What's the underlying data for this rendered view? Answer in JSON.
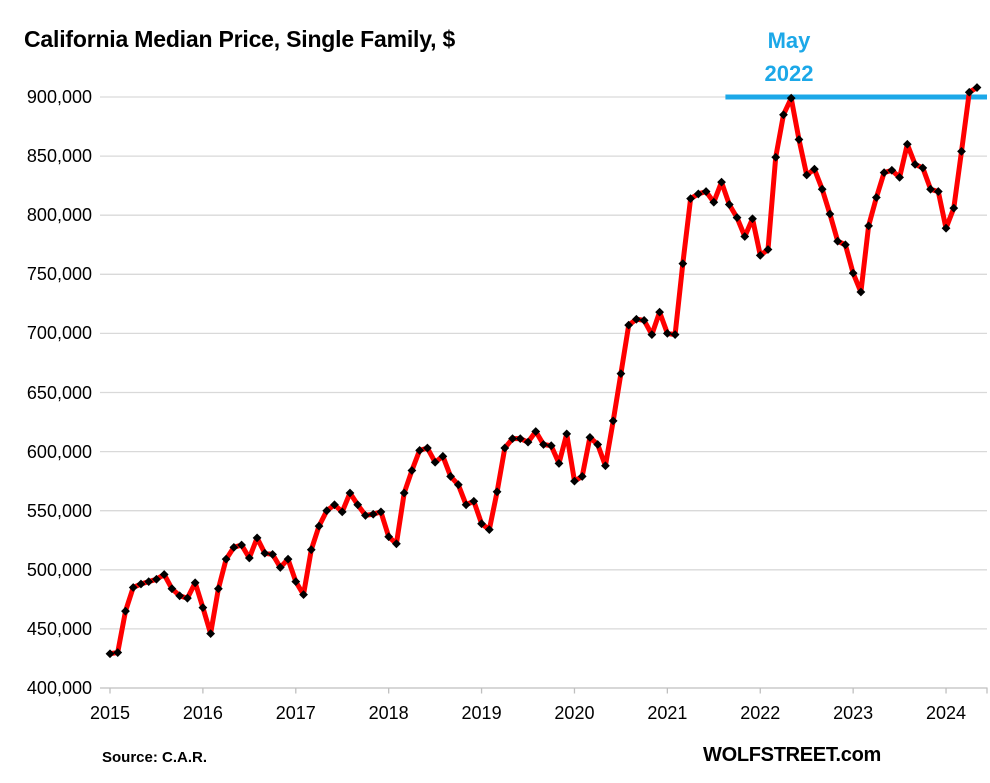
{
  "page": {
    "title": "California Median Price, Single Family, $",
    "source_label": "Source: C.A.R.",
    "brand_label": "WOLFSTREET.com"
  },
  "chart_data": {
    "type": "line",
    "title": "California Median Price, Single Family, $",
    "frequency": "monthly",
    "x_start": "2015-01",
    "x_end": "2024-05",
    "x_tick_years": [
      "2015",
      "2016",
      "2017",
      "2018",
      "2019",
      "2020",
      "2021",
      "2022",
      "2023",
      "2024"
    ],
    "ylim": [
      400000,
      900000
    ],
    "ytick_values": [
      400000,
      450000,
      500000,
      550000,
      600000,
      650000,
      700000,
      750000,
      800000,
      850000,
      900000
    ],
    "ytick_labels": [
      "400,000",
      "450,000",
      "500,000",
      "550,000",
      "600,000",
      "650,000",
      "700,000",
      "750,000",
      "800,000",
      "850,000",
      "900,000"
    ],
    "grid": true,
    "legend": "none",
    "line_color": "#FF0000",
    "marker": "diamond",
    "marker_color": "#000000",
    "grid_color": "#D9D9D9",
    "axis_color": "#BFBFBF",
    "annotation": {
      "text_line1": "May",
      "text_line2": "2022",
      "value": 900000,
      "line_start_month_index": 79.5,
      "color": "#1CA8E8"
    },
    "series": [
      {
        "name": "California median price, single family, $",
        "monthly_values": [
          429000,
          430000,
          465000,
          485000,
          488000,
          490000,
          492000,
          496000,
          484000,
          478000,
          476000,
          489000,
          468000,
          446000,
          484000,
          509000,
          519000,
          521000,
          510000,
          527000,
          514000,
          513000,
          502000,
          509000,
          490000,
          479000,
          517000,
          537000,
          550000,
          555000,
          549000,
          565000,
          555000,
          546000,
          547000,
          549000,
          528000,
          522000,
          565000,
          584000,
          601000,
          603000,
          591000,
          596000,
          579000,
          572000,
          555000,
          558000,
          539000,
          534000,
          566000,
          603000,
          611000,
          611000,
          608000,
          617000,
          606000,
          605000,
          590000,
          615000,
          575000,
          579000,
          612000,
          606000,
          588000,
          626000,
          666000,
          707000,
          712000,
          711000,
          699000,
          718000,
          700000,
          699000,
          759000,
          814000,
          818000,
          820000,
          811000,
          828000,
          809000,
          798000,
          782000,
          797000,
          766000,
          771000,
          849000,
          885000,
          899000,
          864000,
          834000,
          839000,
          822000,
          801000,
          778000,
          775000,
          751000,
          735000,
          791000,
          815000,
          836000,
          838000,
          832000,
          860000,
          843000,
          840000,
          822000,
          820000,
          789000,
          806000,
          854000,
          904000,
          908000
        ]
      }
    ]
  }
}
